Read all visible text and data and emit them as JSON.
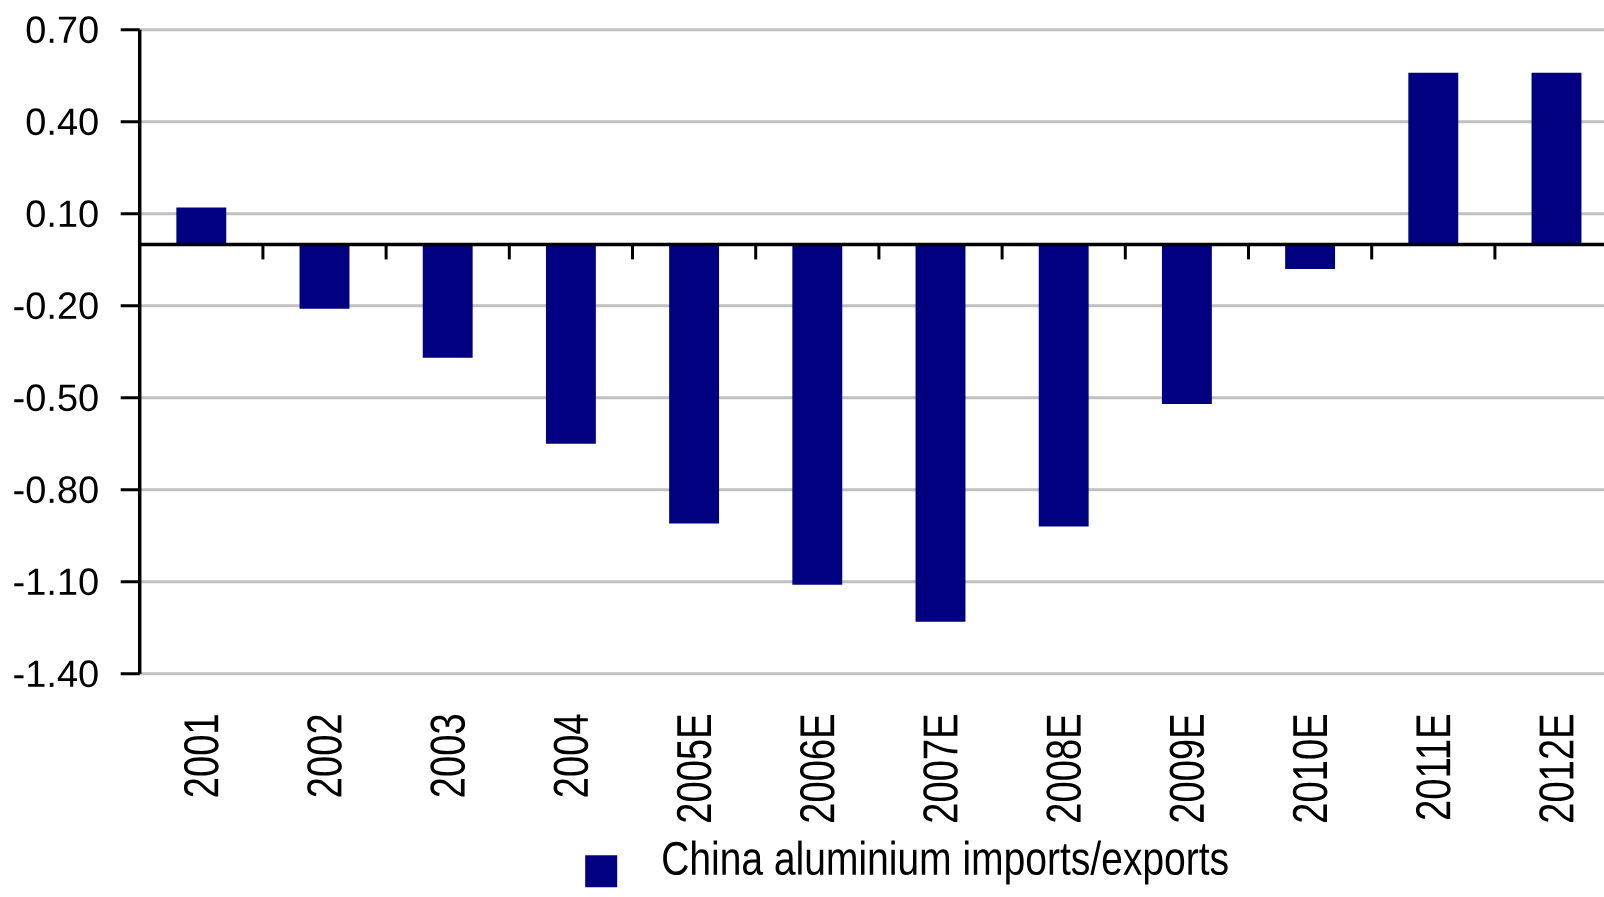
{
  "chart_data": {
    "type": "bar",
    "categories": [
      "2001",
      "2002",
      "2003",
      "2004",
      "2005E",
      "2006E",
      "2007E",
      "2008E",
      "2009E",
      "2010E",
      "2011E",
      "2012E"
    ],
    "series": [
      {
        "name": "China aluminium imports/exports",
        "color": "#000080",
        "values": [
          0.12,
          -0.21,
          -0.37,
          -0.65,
          -0.91,
          -1.11,
          -1.23,
          -0.92,
          -0.52,
          -0.08,
          0.56,
          0.56
        ]
      }
    ],
    "ylim": [
      -1.4,
      0.7
    ],
    "yticks": [
      {
        "value": 0.7,
        "label": "0.70"
      },
      {
        "value": 0.4,
        "label": "0.40"
      },
      {
        "value": 0.1,
        "label": "0.10"
      },
      {
        "value": -0.2,
        "label": "-0.20"
      },
      {
        "value": -0.5,
        "label": "-0.50"
      },
      {
        "value": -0.8,
        "label": "-0.80"
      },
      {
        "value": -1.1,
        "label": "-1.10"
      },
      {
        "value": -1.4,
        "label": "-1.40"
      }
    ],
    "grid": "y",
    "legend": "bottom"
  }
}
